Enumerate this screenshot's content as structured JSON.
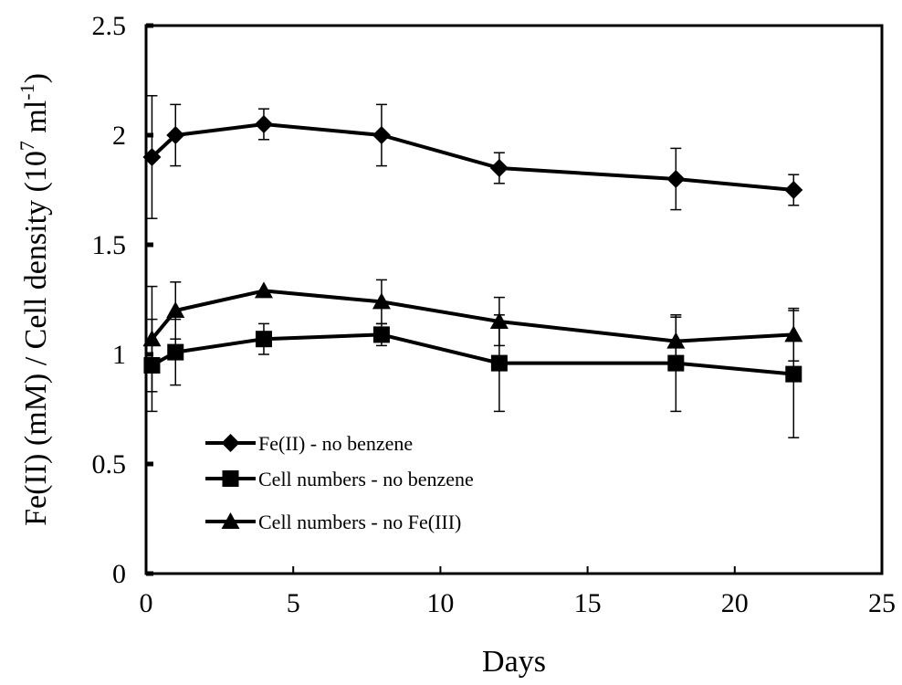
{
  "chart_data": {
    "type": "line",
    "xlabel": "Days",
    "ylabel_parts": [
      "Fe(II) (mM) / Cell density (10",
      "7",
      " ml",
      "-1",
      ")"
    ],
    "xlim": [
      0,
      25
    ],
    "ylim": [
      0,
      2.5
    ],
    "xticks": [
      0,
      5,
      10,
      15,
      20,
      25
    ],
    "xtick_labels": [
      "0",
      "5",
      "10",
      "15",
      "20",
      "25"
    ],
    "yticks": [
      0,
      0.5,
      1,
      1.5,
      2,
      2.5
    ],
    "ytick_labels": [
      "0",
      "0.5",
      "1",
      "1.5",
      "2",
      "2.5"
    ],
    "grid": false,
    "legend_position": "lower-left",
    "colors": {
      "series": "#000000",
      "axis": "#000000",
      "background": "#ffffff"
    },
    "series": [
      {
        "name": "Fe(II) - no benzene",
        "marker": "diamond",
        "x": [
          0.2,
          1,
          4,
          8,
          12,
          18,
          22
        ],
        "y": [
          1.9,
          2.0,
          2.05,
          2.0,
          1.85,
          1.8,
          1.75
        ],
        "err": [
          0.28,
          0.14,
          0.07,
          0.14,
          0.07,
          0.14,
          0.07
        ]
      },
      {
        "name": "Cell numbers - no benzene",
        "marker": "square",
        "x": [
          0.2,
          1,
          4,
          8,
          12,
          18,
          22
        ],
        "y": [
          0.95,
          1.01,
          1.07,
          1.09,
          0.96,
          0.96,
          0.91
        ],
        "err": [
          0.21,
          0.15,
          0.07,
          0.05,
          0.22,
          0.22,
          0.29
        ]
      },
      {
        "name": "Cell numbers - no Fe(III)",
        "marker": "triangle",
        "x": [
          0.2,
          1,
          4,
          8,
          12,
          18,
          22
        ],
        "y": [
          1.07,
          1.2,
          1.29,
          1.24,
          1.15,
          1.06,
          1.09
        ],
        "err": [
          0.24,
          0.13,
          0.0,
          0.1,
          0.11,
          0.11,
          0.12
        ]
      }
    ]
  }
}
